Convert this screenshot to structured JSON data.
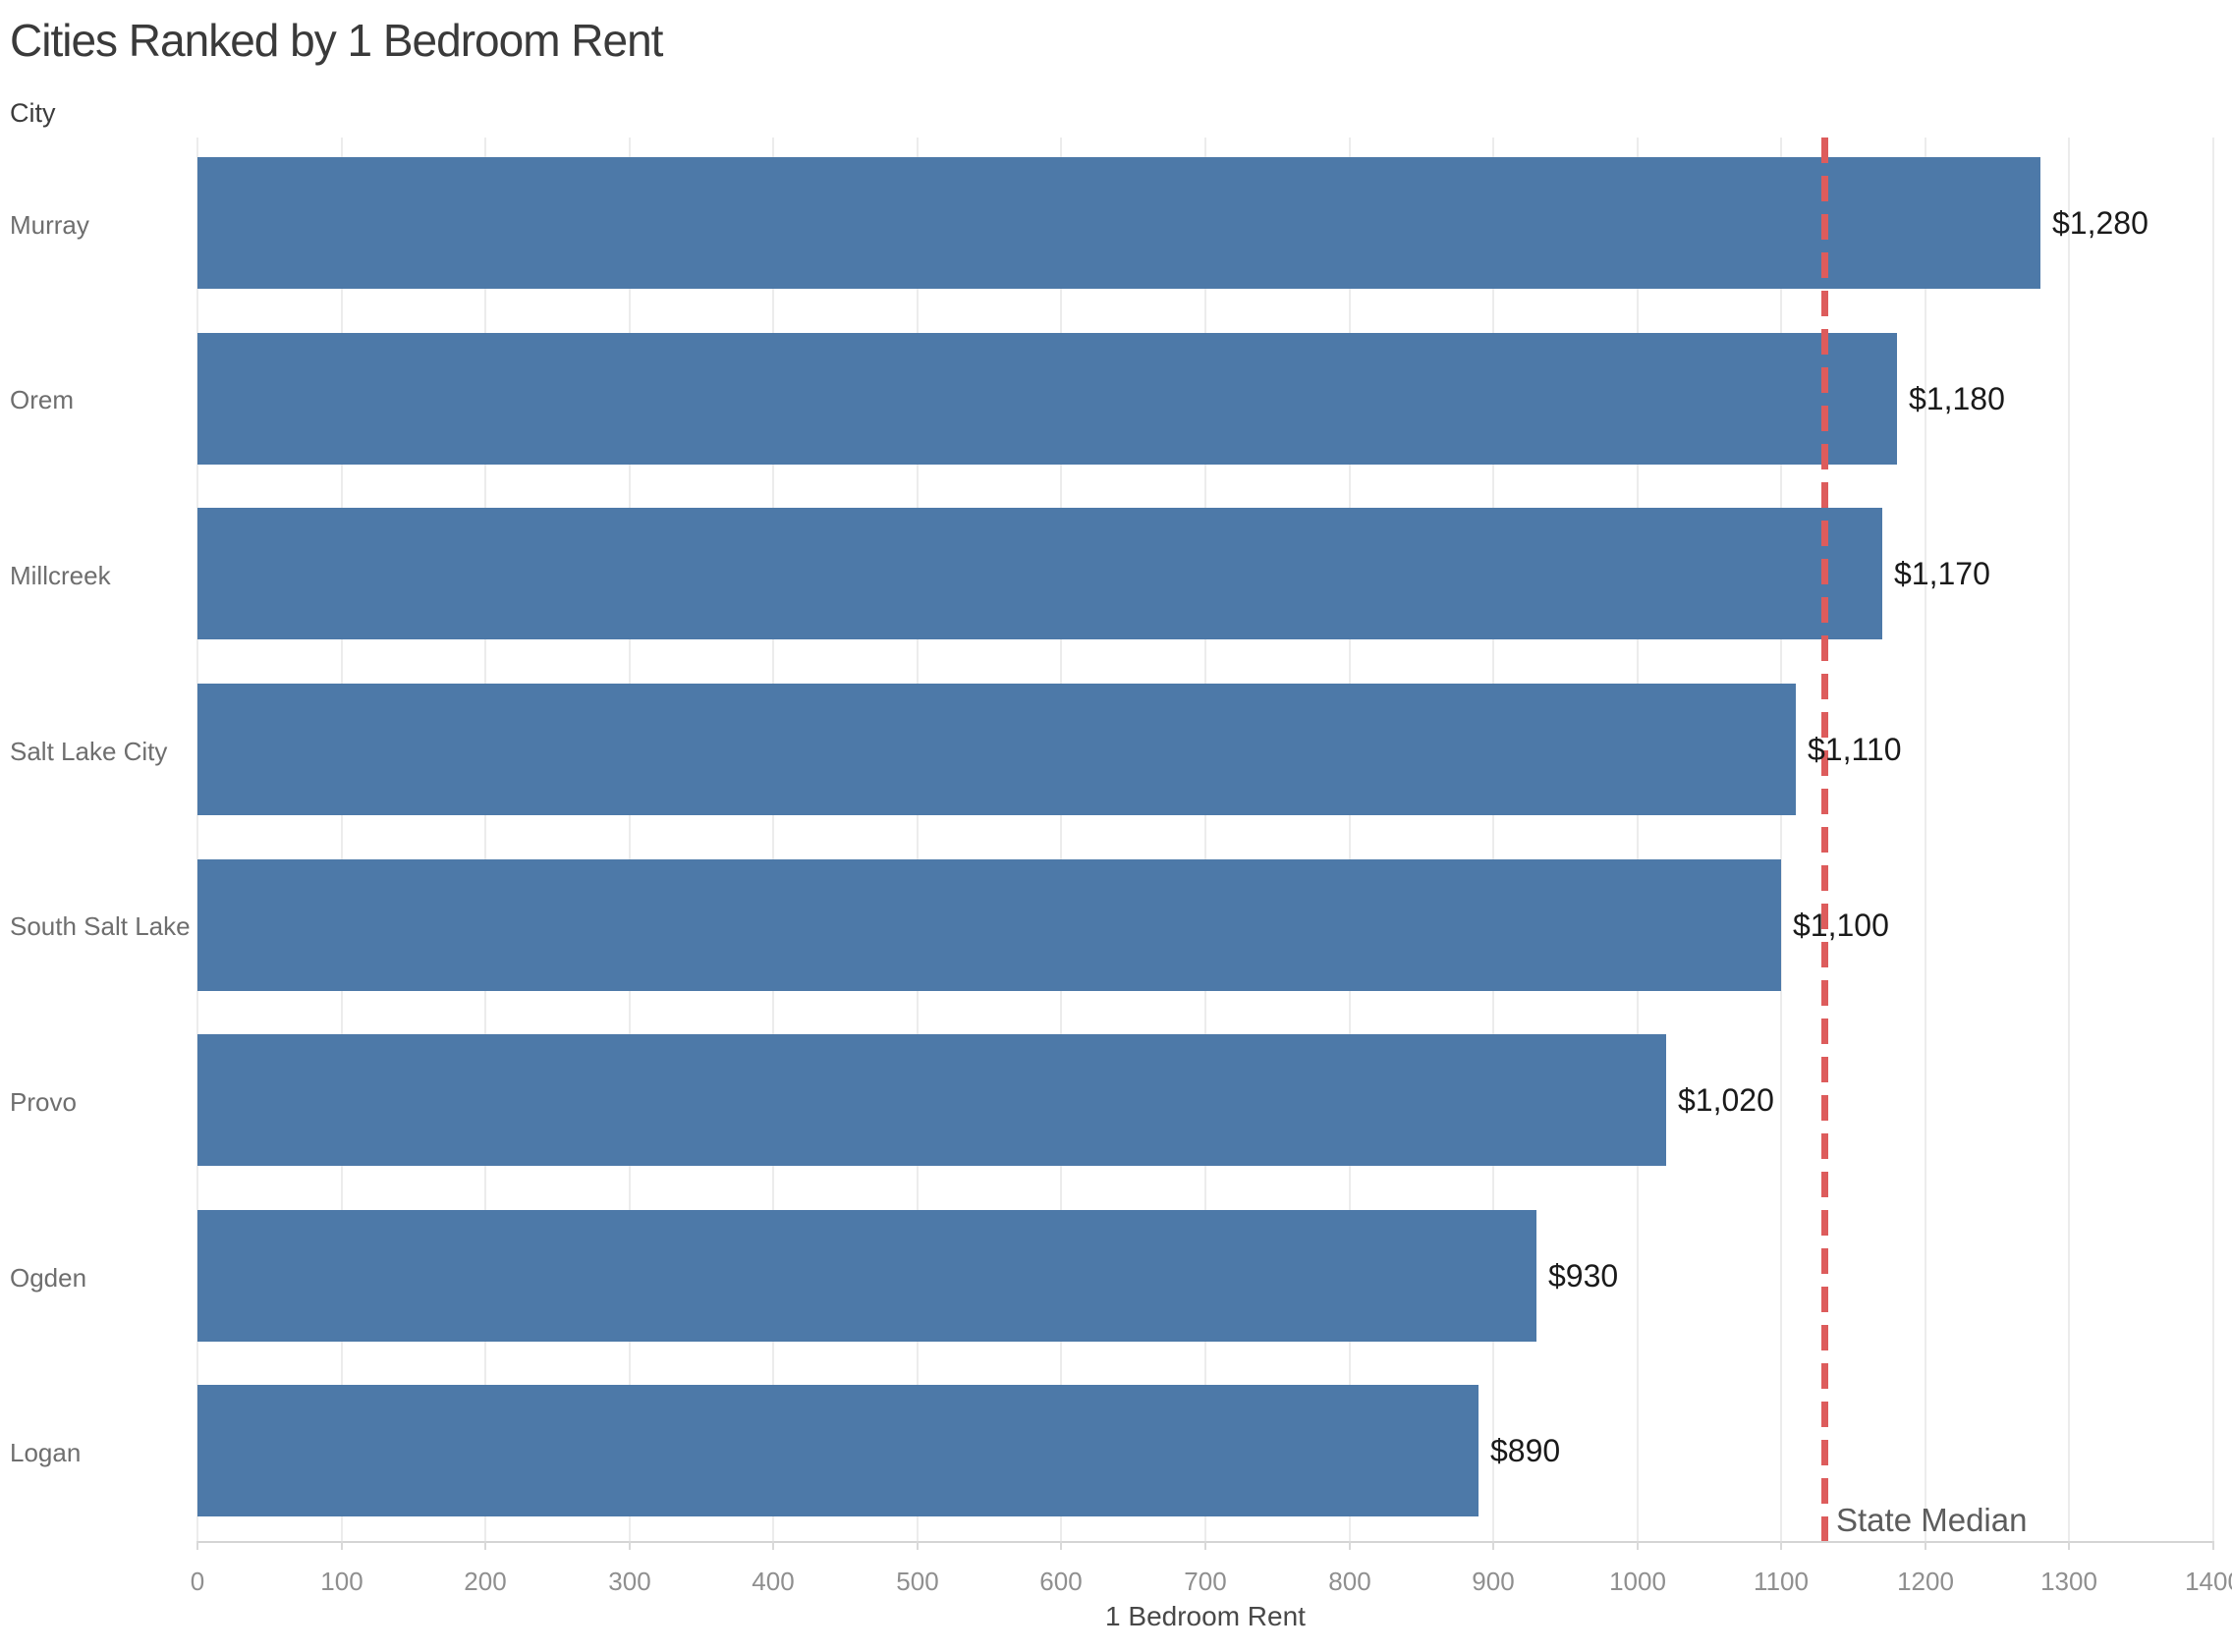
{
  "chart_data": {
    "type": "bar",
    "orientation": "horizontal",
    "title": "Cities Ranked by 1 Bedroom Rent",
    "xlabel": "1 Bedroom Rent",
    "ylabel": "City",
    "categories": [
      "Murray",
      "Orem",
      "Millcreek",
      "Salt Lake City",
      "South Salt Lake",
      "Provo",
      "Ogden",
      "Logan"
    ],
    "values": [
      1280,
      1180,
      1170,
      1110,
      1100,
      1020,
      930,
      890
    ],
    "value_labels": [
      "$1,280",
      "$1,180",
      "$1,170",
      "$1,110",
      "$1,100",
      "$1,020",
      "$930",
      "$890"
    ],
    "xlim": [
      0,
      1400
    ],
    "xticks": [
      0,
      100,
      200,
      300,
      400,
      500,
      600,
      700,
      800,
      900,
      1000,
      1100,
      1200,
      1300,
      1400
    ],
    "grid": "vertical",
    "legend": "none",
    "reference_line": {
      "label": "State Median",
      "value": 1130,
      "style": "dashed"
    },
    "colors": {
      "bar": "#4d79a8",
      "reference_line": "#dd5c5c",
      "title_text": "#3a3a3a",
      "category_text": "#6e6e6e",
      "tick_text": "#8f8f8f",
      "value_text": "#1a1a1a",
      "gridline": "#ececec",
      "axis_line": "#d4d4d4"
    }
  }
}
